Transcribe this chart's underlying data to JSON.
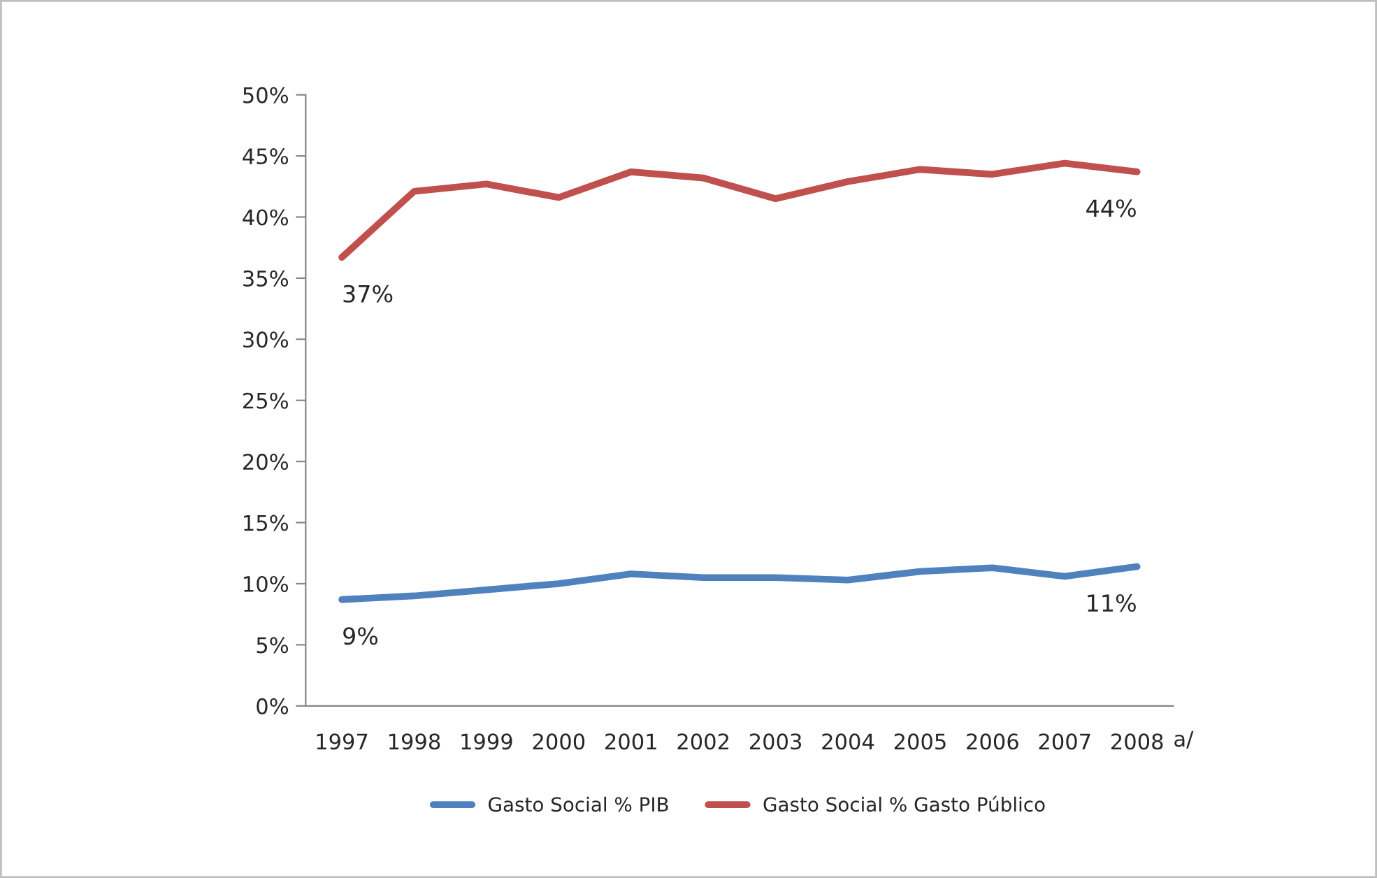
{
  "chart_data": {
    "type": "line",
    "categories": [
      "1997",
      "1998",
      "1999",
      "2000",
      "2001",
      "2002",
      "2003",
      "2004",
      "2005",
      "2006",
      "2007",
      "2008"
    ],
    "series": [
      {
        "name": "Gasto Social % PIB",
        "color": "#4f81bd",
        "values": [
          8.7,
          9.0,
          9.5,
          10.0,
          10.8,
          10.5,
          10.5,
          10.3,
          11.0,
          11.3,
          10.6,
          11.4
        ],
        "value_labels": [
          "9%",
          null,
          null,
          null,
          null,
          null,
          null,
          null,
          null,
          null,
          null,
          "11%"
        ]
      },
      {
        "name": "Gasto Social % Gasto Público",
        "color": "#c0504d",
        "values": [
          36.7,
          42.1,
          42.7,
          41.6,
          43.7,
          43.2,
          41.5,
          42.9,
          43.9,
          43.5,
          44.4,
          43.7
        ],
        "value_labels": [
          "37%",
          null,
          null,
          null,
          null,
          null,
          null,
          null,
          null,
          null,
          null,
          "44%"
        ]
      }
    ],
    "ylim": [
      0,
      50
    ],
    "yticks": [
      {
        "value": 0,
        "label": "0%"
      },
      {
        "value": 5,
        "label": "5%"
      },
      {
        "value": 10,
        "label": "10%"
      },
      {
        "value": 15,
        "label": "15%"
      },
      {
        "value": 20,
        "label": "20%"
      },
      {
        "value": 25,
        "label": "25%"
      },
      {
        "value": 30,
        "label": "30%"
      },
      {
        "value": 35,
        "label": "35%"
      },
      {
        "value": 40,
        "label": "40%"
      },
      {
        "value": 45,
        "label": "45%"
      },
      {
        "value": 50,
        "label": "50%"
      }
    ],
    "annotations": [
      "a/"
    ],
    "grid": false,
    "legend": "bottom",
    "marker": "none",
    "line_style": "solid"
  }
}
